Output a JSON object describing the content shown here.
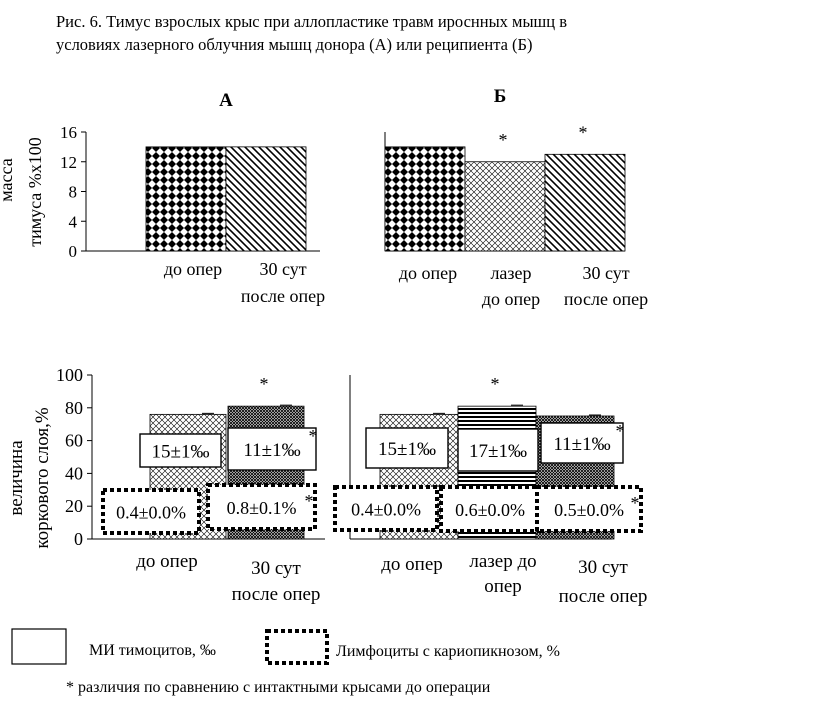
{
  "caption": {
    "line1": "Рис. 6. Тимус взрослых крыс при аллопластике травм ироснных мышц в",
    "line2": "условиях лазерного облучния мышц донора (А) или реципиента (Б)"
  },
  "footnote": "* различия по сравнению с интактными крысами до операции",
  "legend": {
    "mi_label": "МИ тимоцитов, ‰",
    "lymph_label": "Лимфоциты с кариопикнозом, %"
  },
  "chart_data": [
    {
      "type": "bar",
      "panel": "top-A",
      "title": "А",
      "ylabel": "масса тимуса %х100",
      "ylim": [
        0,
        16
      ],
      "yticks": [
        "0",
        "4",
        "8",
        "12",
        "16"
      ],
      "categories": [
        [
          "до опер"
        ],
        [
          "30 сут",
          "после опер"
        ]
      ],
      "values": [
        14,
        14
      ],
      "significant": [
        false,
        false
      ],
      "patterns": [
        "checker",
        "diag"
      ]
    },
    {
      "type": "bar",
      "panel": "top-B",
      "title": "Б",
      "ylim": [
        0,
        16
      ],
      "categories": [
        [
          "до опер"
        ],
        [
          "лазер",
          "до опер"
        ],
        [
          "30 сут",
          "после опер"
        ]
      ],
      "values": [
        14,
        12,
        13
      ],
      "significant": [
        false,
        true,
        true
      ],
      "patterns": [
        "checker",
        "crosshatch",
        "diag"
      ]
    },
    {
      "type": "bar",
      "panel": "bottom-A",
      "ylabel": "величина коркового слоя,%",
      "ylim": [
        0,
        100
      ],
      "yticks": [
        "0",
        "20",
        "40",
        "60",
        "80",
        "100"
      ],
      "categories": [
        [
          "до опер"
        ],
        [
          "30 сут",
          "после опер"
        ]
      ],
      "values": [
        76,
        81
      ],
      "significant": [
        false,
        true
      ],
      "patterns": [
        "crosshatch",
        "dense"
      ],
      "mi_labels": [
        "15±1‰",
        "11±1‰"
      ],
      "mi_star": [
        false,
        true
      ],
      "lymph_labels": [
        "0.4±0.0%",
        "0.8±0.1%"
      ],
      "lymph_star": [
        false,
        true
      ]
    },
    {
      "type": "bar",
      "panel": "bottom-B",
      "ylim": [
        0,
        100
      ],
      "categories": [
        [
          "до опер"
        ],
        [
          "лазер до",
          "опер"
        ],
        [
          "30 сут",
          "после опер"
        ]
      ],
      "values": [
        76,
        81,
        75
      ],
      "significant": [
        false,
        true,
        false
      ],
      "patterns": [
        "crosshatch",
        "hlines",
        "dense"
      ],
      "mi_labels": [
        "15±1‰",
        "17±1‰",
        "11±1‰"
      ],
      "mi_star": [
        false,
        false,
        true
      ],
      "lymph_labels": [
        "0.4±0.0%",
        "0.6±0.0%",
        "0.5±0.0%"
      ],
      "lymph_star": [
        false,
        false,
        true
      ]
    }
  ]
}
